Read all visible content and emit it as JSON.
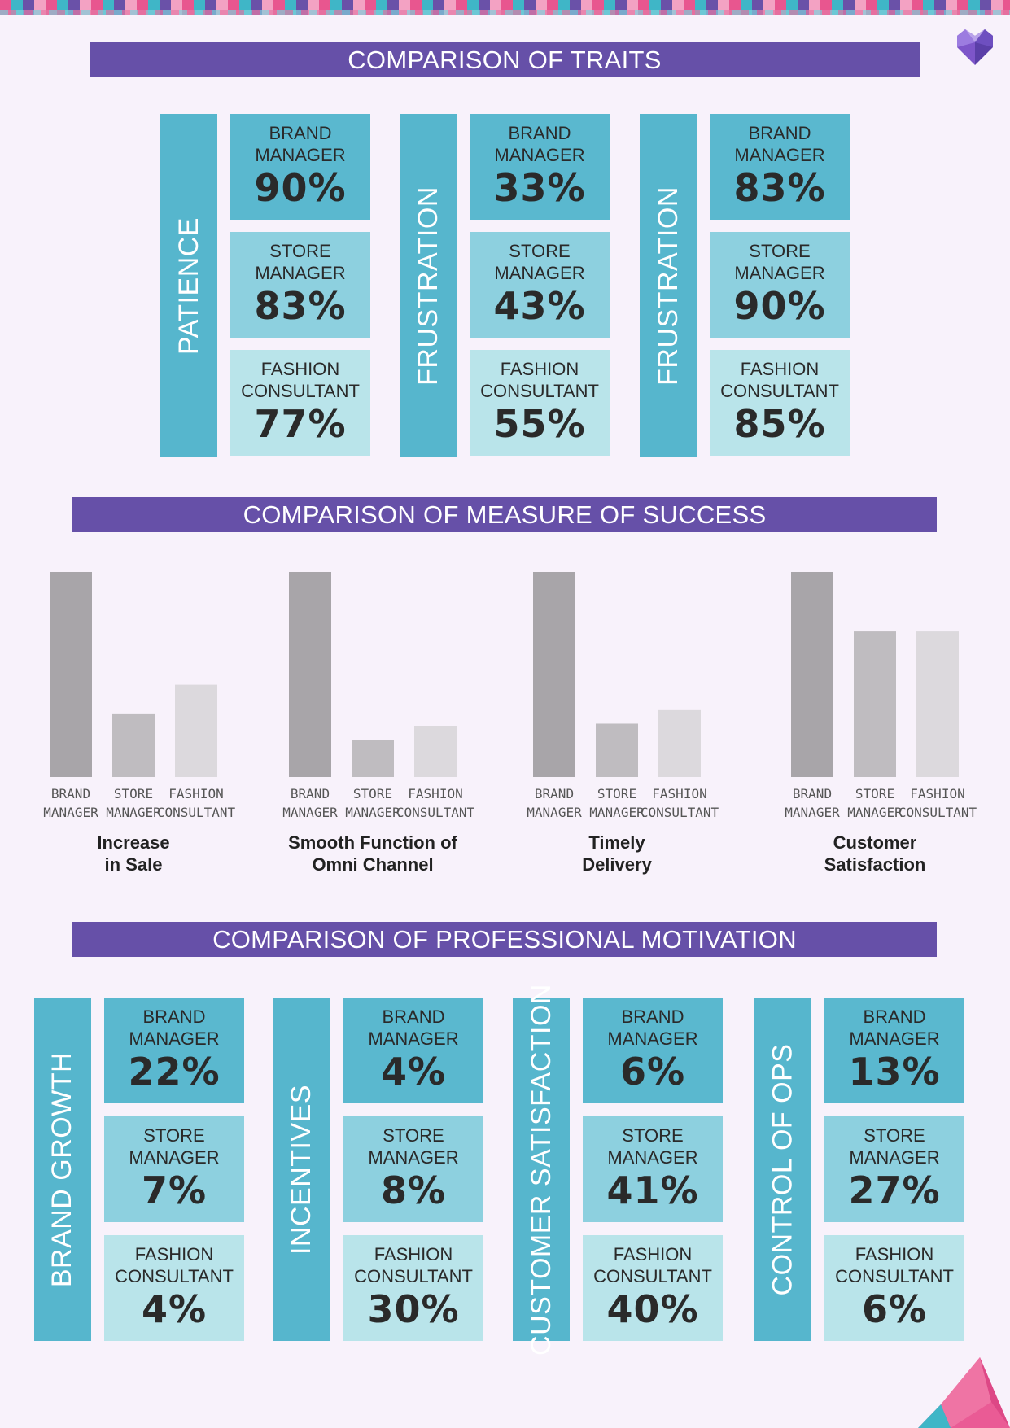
{
  "colors": {
    "title_bg": "#6650a8",
    "tile_dark": "#56b6cd",
    "card_brand": "#5ab8cf",
    "card_store": "#8dd0df",
    "card_fashion": "#b9e4ea",
    "bar_brand": "#a8a5a9",
    "bar_store": "#bfbcc0",
    "bar_fashion": "#dcd9dd"
  },
  "traits": {
    "title": "COMPARISON OF TRAITS",
    "groups": [
      {
        "label": "PATIENCE",
        "items": [
          {
            "role": "BRAND\nMANAGER",
            "value": "90%"
          },
          {
            "role": "STORE\nMANAGER",
            "value": "83%"
          },
          {
            "role": "FASHION\nCONSULTANT",
            "value": "77%"
          }
        ]
      },
      {
        "label": "FRUSTRATION",
        "items": [
          {
            "role": "BRAND\nMANAGER",
            "value": "33%"
          },
          {
            "role": "STORE\nMANAGER",
            "value": "43%"
          },
          {
            "role": "FASHION\nCONSULTANT",
            "value": "55%"
          }
        ]
      },
      {
        "label": "FRUSTRATION",
        "items": [
          {
            "role": "BRAND\nMANAGER",
            "value": "83%"
          },
          {
            "role": "STORE\nMANAGER",
            "value": "90%"
          },
          {
            "role": "FASHION\nCONSULTANT",
            "value": "85%"
          }
        ]
      }
    ]
  },
  "success": {
    "title": "COMPARISON OF MEASURE OF SUCCESS"
  },
  "chart_data": {
    "type": "bar",
    "title": "COMPARISON OF MEASURE OF SUCCESS",
    "ylim": [
      0,
      100
    ],
    "category_labels": [
      [
        "BRAND",
        "MANAGER"
      ],
      [
        "STORE",
        "MANAGER"
      ],
      [
        "FASHION",
        "CONSULTANT"
      ]
    ],
    "groups": [
      {
        "name": [
          "Increase",
          "in Sale"
        ],
        "values": [
          100,
          31,
          45
        ]
      },
      {
        "name": [
          "Smooth Function of",
          "Omni Channel"
        ],
        "values": [
          100,
          18,
          25
        ]
      },
      {
        "name": [
          "Timely",
          "Delivery"
        ],
        "values": [
          100,
          26,
          33
        ]
      },
      {
        "name": [
          "Customer",
          "Satisfaction"
        ],
        "values": [
          100,
          71,
          71
        ]
      }
    ]
  },
  "motivation": {
    "title": "COMPARISON OF PROFESSIONAL MOTIVATION",
    "groups": [
      {
        "label": "BRAND GROWTH",
        "items": [
          {
            "role": "BRAND\nMANAGER",
            "value": "22%"
          },
          {
            "role": "STORE\nMANAGER",
            "value": "7%"
          },
          {
            "role": "FASHION\nCONSULTANT",
            "value": "4%"
          }
        ]
      },
      {
        "label": "INCENTIVES",
        "items": [
          {
            "role": "BRAND\nMANAGER",
            "value": "4%"
          },
          {
            "role": "STORE\nMANAGER",
            "value": "8%"
          },
          {
            "role": "FASHION\nCONSULTANT",
            "value": "30%"
          }
        ]
      },
      {
        "label": "CUSTOMER SATISFACTION",
        "items": [
          {
            "role": "BRAND\nMANAGER",
            "value": "6%"
          },
          {
            "role": "STORE\nMANAGER",
            "value": "41%"
          },
          {
            "role": "FASHION\nCONSULTANT",
            "value": "40%"
          }
        ]
      },
      {
        "label": "CONTROL OF OPS",
        "items": [
          {
            "role": "BRAND\nMANAGER",
            "value": "13%"
          },
          {
            "role": "STORE\nMANAGER",
            "value": "27%"
          },
          {
            "role": "FASHION\nCONSULTANT",
            "value": "6%"
          }
        ]
      }
    ]
  }
}
